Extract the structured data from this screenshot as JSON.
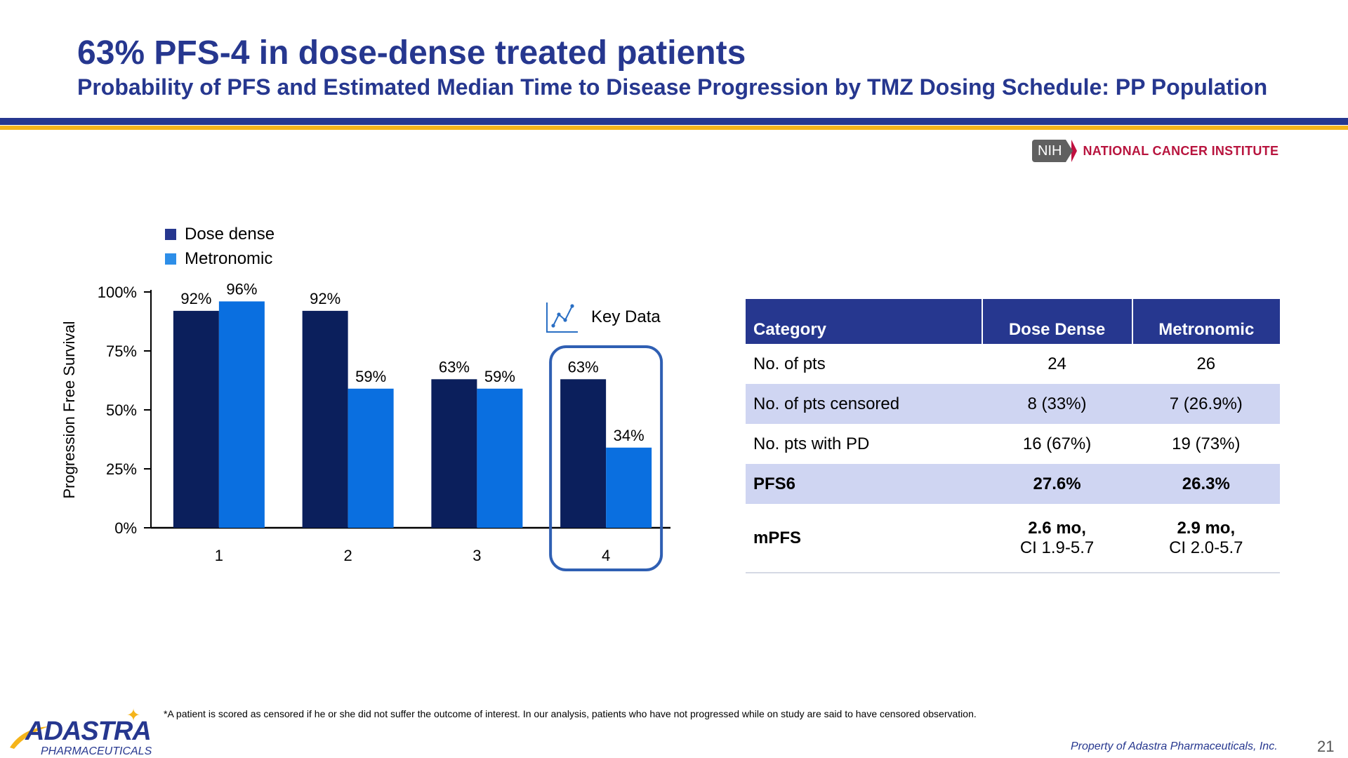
{
  "header": {
    "title": "63% PFS-4 in dose-dense treated patients",
    "subtitle": "Probability of PFS and Estimated Median Time to Disease Progression by TMZ Dosing Schedule: PP Population"
  },
  "nih": {
    "badge": "NIH",
    "name": "NATIONAL CANCER INSTITUTE"
  },
  "chart_data": {
    "type": "bar",
    "ylabel": "Progression Free Survival",
    "xlabel": "",
    "ylim": [
      0,
      100
    ],
    "yticks": [
      "0%",
      "25%",
      "50%",
      "75%",
      "100%"
    ],
    "categories": [
      "1",
      "2",
      "3",
      "4"
    ],
    "series": [
      {
        "name": "Dose dense",
        "values": [
          92,
          92,
          63,
          63
        ],
        "labels": [
          "92%",
          "92%",
          "63%",
          "63%"
        ],
        "color": "#0b1f5c"
      },
      {
        "name": "Metronomic",
        "values": [
          96,
          59,
          59,
          34
        ],
        "labels": [
          "96%",
          "59%",
          "59%",
          "34%"
        ],
        "color": "#0a6fe0"
      }
    ],
    "highlight_category": "4",
    "highlight_color": "#2f5fb3",
    "legend_position": "top-left",
    "grid": false
  },
  "key_data": {
    "label": "Key Data",
    "icon": "line-chart-icon"
  },
  "table": {
    "headers": [
      "Category",
      "Dose Dense",
      "Metronomic"
    ],
    "rows": [
      {
        "category": "No. of pts",
        "dose_dense": "24",
        "metronomic": "26"
      },
      {
        "category": "No. of pts censored",
        "dose_dense": "8 (33%)",
        "metronomic": "7 (26.9%)"
      },
      {
        "category": "No. pts with PD",
        "dose_dense": "16 (67%)",
        "metronomic": "19 (73%)"
      },
      {
        "category": "PFS6",
        "dose_dense": "27.6%",
        "metronomic": "26.3%"
      },
      {
        "category": "mPFS",
        "dose_dense": "2.6 mo,",
        "dose_dense_ci": "CI 1.9-5.7",
        "metronomic": "2.9 mo,",
        "metronomic_ci": "CI 2.0-5.7"
      }
    ]
  },
  "footer": {
    "footnote": "*A patient is scored as censored if he or she did not suffer the outcome of interest. In our analysis, patients who have not progressed while on study are said to have censored observation.",
    "logo_main": "ADASTRA",
    "logo_sub": "PHARMACEUTICALS",
    "property": "Property of Adastra Pharmaceuticals, Inc.",
    "page_number": "21"
  },
  "colors": {
    "brand_blue": "#26378f",
    "accent_gold": "#f5b41a",
    "table_shade": "#cfd5f2",
    "nih_red": "#b8143e"
  }
}
